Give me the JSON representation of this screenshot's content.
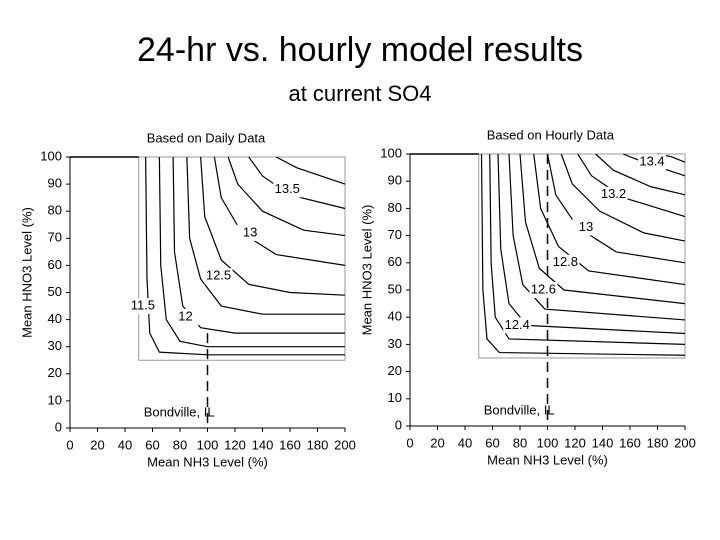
{
  "title": "24-hr vs. hourly model results",
  "subtitle": "at current SO4",
  "chart_data": [
    {
      "type": "contour",
      "title": "Based on Daily Data",
      "annotation": "Bondville, IL",
      "xlabel": "Mean NH3 Level (%)",
      "ylabel": "Mean HNO3 Level (%)",
      "xlim": [
        0,
        200
      ],
      "ylim": [
        0,
        100
      ],
      "xticks": [
        0,
        20,
        40,
        60,
        80,
        100,
        120,
        140,
        160,
        180,
        200
      ],
      "yticks": [
        0,
        10,
        20,
        30,
        40,
        50,
        60,
        70,
        80,
        90,
        100
      ],
      "box_xlim": [
        50,
        200
      ],
      "box_ylim": [
        25,
        100
      ],
      "dashed_line": {
        "x": 100,
        "y": [
          0,
          35
        ]
      },
      "contours": [
        {
          "x": [
            55,
            56,
            58,
            65,
            100,
            200
          ],
          "y": [
            100,
            55,
            35,
            28,
            27,
            27
          ]
        },
        {
          "x": [
            65,
            66,
            70,
            80,
            100,
            200
          ],
          "y": [
            100,
            60,
            40,
            32,
            30,
            30
          ]
        },
        {
          "x": [
            75,
            76,
            82,
            95,
            120,
            200
          ],
          "y": [
            100,
            65,
            45,
            37,
            35,
            35
          ]
        },
        {
          "x": [
            85,
            87,
            95,
            110,
            140,
            200
          ],
          "y": [
            100,
            70,
            55,
            45,
            42,
            42
          ]
        },
        {
          "x": [
            95,
            98,
            110,
            130,
            160,
            200
          ],
          "y": [
            100,
            78,
            62,
            53,
            50,
            49
          ]
        },
        {
          "x": [
            105,
            110,
            125,
            150,
            200
          ],
          "y": [
            100,
            85,
            72,
            64,
            60
          ]
        },
        {
          "x": [
            115,
            122,
            140,
            170,
            200
          ],
          "y": [
            100,
            90,
            80,
            73,
            71
          ]
        },
        {
          "x": [
            130,
            140,
            160,
            200
          ],
          "y": [
            100,
            93,
            86,
            81
          ]
        },
        {
          "x": [
            150,
            165,
            200
          ],
          "y": [
            100,
            96,
            90
          ]
        }
      ],
      "contour_labels": [
        {
          "text": "13.5",
          "x": 158,
          "y": 88
        },
        {
          "text": "13",
          "x": 131,
          "y": 72
        },
        {
          "text": "12.5",
          "x": 108,
          "y": 56
        },
        {
          "text": "12",
          "x": 84,
          "y": 41
        },
        {
          "text": "11.5",
          "x": 53,
          "y": 45
        }
      ]
    },
    {
      "type": "contour",
      "title": "Based on Hourly Data",
      "annotation": "Bondville, IL",
      "xlabel": "Mean NH3 Level (%)",
      "ylabel": "Mean HNO3 Level (%)",
      "xlim": [
        0,
        200
      ],
      "ylim": [
        0,
        100
      ],
      "xticks": [
        0,
        20,
        40,
        60,
        80,
        100,
        120,
        140,
        160,
        180,
        200
      ],
      "yticks": [
        0,
        10,
        20,
        30,
        40,
        50,
        60,
        70,
        80,
        90,
        100
      ],
      "box_xlim": [
        50,
        200
      ],
      "box_ylim": [
        25,
        100
      ],
      "dashed_line": {
        "x": 100,
        "y": [
          0,
          100
        ]
      },
      "contours": [
        {
          "x": [
            52,
            53,
            56,
            65,
            200
          ],
          "y": [
            100,
            50,
            32,
            27,
            26
          ]
        },
        {
          "x": [
            58,
            59,
            62,
            72,
            200
          ],
          "y": [
            100,
            60,
            40,
            32,
            30
          ]
        },
        {
          "x": [
            64,
            66,
            72,
            85,
            200
          ],
          "y": [
            100,
            65,
            45,
            37,
            34
          ]
        },
        {
          "x": [
            72,
            75,
            82,
            98,
            200
          ],
          "y": [
            100,
            70,
            52,
            43,
            39
          ]
        },
        {
          "x": [
            80,
            84,
            94,
            112,
            200
          ],
          "y": [
            100,
            75,
            58,
            50,
            45
          ]
        },
        {
          "x": [
            90,
            95,
            108,
            130,
            200
          ],
          "y": [
            100,
            80,
            66,
            57,
            52
          ]
        },
        {
          "x": [
            100,
            106,
            122,
            150,
            200
          ],
          "y": [
            100,
            85,
            73,
            64,
            60
          ]
        },
        {
          "x": [
            110,
            118,
            138,
            170,
            200
          ],
          "y": [
            100,
            89,
            79,
            71,
            68
          ]
        },
        {
          "x": [
            122,
            132,
            155,
            200
          ],
          "y": [
            100,
            92,
            84,
            77
          ]
        },
        {
          "x": [
            135,
            148,
            175,
            200
          ],
          "y": [
            100,
            94,
            88,
            85
          ]
        },
        {
          "x": [
            155,
            170,
            200
          ],
          "y": [
            100,
            97,
            92
          ]
        },
        {
          "x": [
            180,
            190,
            200
          ],
          "y": [
            100,
            99,
            97
          ]
        }
      ],
      "contour_labels": [
        {
          "text": "13.4",
          "x": 176,
          "y": 97
        },
        {
          "text": "13.2",
          "x": 148,
          "y": 85
        },
        {
          "text": "13",
          "x": 128,
          "y": 73
        },
        {
          "text": "12.8",
          "x": 113,
          "y": 60
        },
        {
          "text": "12.6",
          "x": 97,
          "y": 50
        },
        {
          "text": "12.4",
          "x": 78,
          "y": 37
        }
      ]
    }
  ]
}
